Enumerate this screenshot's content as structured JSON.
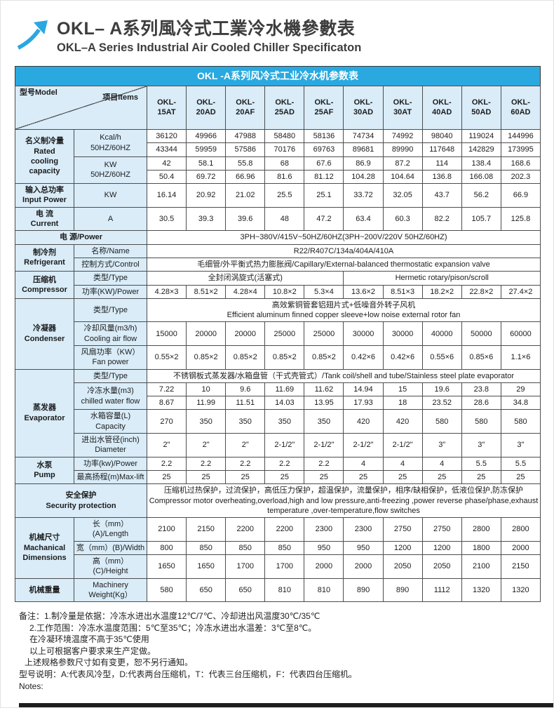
{
  "header": {
    "title_cn": "OKL– A系列風冷式工業冷水機參數表",
    "title_en": "OKL–A Series Industrial Air Cooled Chiller Specificaton",
    "logo_icon": "arrow-up-right-icon"
  },
  "colors": {
    "accent_blue": "#29a9e0",
    "cell_blue": "#d9ecf8",
    "border": "#4d4d4d"
  },
  "table": {
    "title": "OKL -A系列风冷式工业冷水机参数表",
    "header": {
      "corner_model": "型号Model",
      "corner_items": "项目Items",
      "models": [
        "OKL-\n15AT",
        "OKL-\n20AD",
        "OKL-\n20AF",
        "OKL-\n25AD",
        "OKL-\n25AF",
        "OKL-\n30AD",
        "OKL-\n30AT",
        "OKL-\n40AD",
        "OKL-\n50AD",
        "OKL-\n60AD"
      ]
    },
    "rows": [
      [
        {
          "t": "名义制冷量\nRated\ncooling\ncapacity",
          "rs": 4,
          "cls": "cat"
        },
        {
          "t": "Kcal/h\n50HZ/60HZ",
          "rs": 2,
          "cls": "sub"
        },
        "36120",
        "49966",
        "47988",
        "58480",
        "58136",
        "74734",
        "74992",
        "98040",
        "119024",
        "144996"
      ],
      [
        "43344",
        "59959",
        "57586",
        "70176",
        "69763",
        "89681",
        "89990",
        "117648",
        "142829",
        "173995"
      ],
      [
        {
          "t": "KW\n50HZ/60HZ",
          "rs": 2,
          "cls": "sub"
        },
        "42",
        "58.1",
        "55.8",
        "68",
        "67.6",
        "86.9",
        "87.2",
        "114",
        "138.4",
        "168.6"
      ],
      [
        "50.4",
        "69.72",
        "66.96",
        "81.6",
        "81.12",
        "104.28",
        "104.64",
        "136.8",
        "166.08",
        "202.3"
      ],
      [
        {
          "t": "输入总功率\nInput Power",
          "cls": "cat"
        },
        {
          "t": "KW",
          "cls": "sub"
        },
        "16.14",
        "20.92",
        "21.02",
        "25.5",
        "25.1",
        "33.72",
        "32.05",
        "43.7",
        "56.2",
        "66.9"
      ],
      [
        {
          "t": "电 流\nCurrent",
          "cls": "cat"
        },
        {
          "t": "A",
          "cls": "sub"
        },
        "30.5",
        "39.3",
        "39.6",
        "48",
        "47.2",
        "63.4",
        "60.3",
        "82.2",
        "105.7",
        "125.8"
      ],
      [
        {
          "t": "电 源/Power",
          "cs": 2,
          "cls": "cat"
        },
        {
          "t": "3PH~380V/415V~50HZ/60HZ(3PH~200V/220V 50HZ/60HZ)",
          "cs": 10,
          "cls": "wide"
        }
      ],
      [
        {
          "t": "制冷剂\nRefrigerant",
          "rs": 2,
          "cls": "cat"
        },
        {
          "t": "名称/Name",
          "cls": "sub"
        },
        {
          "t": "R22/R407C/134a/404A/410A",
          "cs": 10,
          "cls": "wide"
        }
      ],
      [
        {
          "t": "控制方式/Control",
          "cls": "sub"
        },
        {
          "t": "毛细管/外平衡式热力膨胀阀/Capillary/External-balanced thermostatic expansion valve",
          "cs": 10,
          "cls": "wide"
        }
      ],
      [
        {
          "t": "压缩机\nCompressor",
          "rs": 2,
          "cls": "cat"
        },
        {
          "t": "类型/Type",
          "cls": "sub"
        },
        {
          "t": "全封闭涡旋式(活塞式)",
          "cs": 5,
          "cls": "wide"
        },
        {
          "t": "Hermetic rotary/pison/scroll",
          "cs": 5,
          "cls": "wide"
        }
      ],
      [
        {
          "t": "功率(KW)/Power",
          "cls": "sub"
        },
        "4.28×3",
        "8.51×2",
        "4.28×4",
        "10.8×2",
        "5.3×4",
        "13.6×2",
        "8.51×3",
        "18.2×2",
        "22.8×2",
        "27.4×2"
      ],
      [
        {
          "t": "冷凝器\nCondenser",
          "rs": 3,
          "cls": "cat"
        },
        {
          "t": "类型/Type",
          "cls": "sub"
        },
        {
          "t": "高效紫铜管套铝翅片式+低噪音外转子风机\nEfficient aluminum finned copper sleeve+low noise external rotor fan",
          "cs": 10,
          "cls": "wide"
        }
      ],
      [
        {
          "t": "冷却风量(m3/h)\nCooling air flow",
          "cls": "sub"
        },
        "15000",
        "20000",
        "20000",
        "25000",
        "25000",
        "30000",
        "30000",
        "40000",
        "50000",
        "60000"
      ],
      [
        {
          "t": "风扇功率（KW）\nFan power",
          "cls": "sub"
        },
        "0.55×2",
        "0.85×2",
        "0.85×2",
        "0.85×2",
        "0.85×2",
        "0.42×6",
        "0.42×6",
        "0.55×6",
        "0.85×6",
        "1.1×6"
      ],
      [
        {
          "t": "蒸发器\nEvaporator",
          "rs": 5,
          "cls": "cat"
        },
        {
          "t": "类型/Type",
          "cls": "sub"
        },
        {
          "t": "不锈钢板式蒸发器/水箱盘管（干式壳管式）/Tank coil/shell and tube/Stainless steel plate evaporator",
          "cs": 10,
          "cls": "wide"
        }
      ],
      [
        {
          "t": "冷冻水量(m3)\nchilled water flow",
          "rs": 2,
          "cls": "sub"
        },
        "7.22",
        "10",
        "9.6",
        "11.69",
        "11.62",
        "14.94",
        "15",
        "19.6",
        "23.8",
        "29"
      ],
      [
        "8.67",
        "11.99",
        "11.51",
        "14.03",
        "13.95",
        "17.93",
        "18",
        "23.52",
        "28.6",
        "34.8"
      ],
      [
        {
          "t": "水箱容量(L)\nCapacity",
          "cls": "sub"
        },
        "270",
        "350",
        "350",
        "350",
        "350",
        "420",
        "420",
        "580",
        "580",
        "580"
      ],
      [
        {
          "t": "进出水管径(inch)\nDiameter",
          "cls": "sub"
        },
        "2\"",
        "2\"",
        "2\"",
        "2-1/2\"",
        "2-1/2\"",
        "2-1/2\"",
        "2-1/2\"",
        "3\"",
        "3\"",
        "3\""
      ],
      [
        {
          "t": "水泵\nPump",
          "rs": 2,
          "cls": "cat"
        },
        {
          "t": "功率(kw)/Power",
          "cls": "sub"
        },
        "2.2",
        "2.2",
        "2.2",
        "2.2",
        "2.2",
        "4",
        "4",
        "4",
        "5.5",
        "5.5"
      ],
      [
        {
          "t": "最高扬程(m)Max-lift",
          "cls": "sub"
        },
        "25",
        "25",
        "25",
        "25",
        "25",
        "25",
        "25",
        "25",
        "25",
        "25"
      ],
      [
        {
          "t": "安全保护\nSecurity protection",
          "cs": 2,
          "cls": "cat"
        },
        {
          "t": "压缩机过热保护，过流保护，高低压力保护，超温保护，流量保护，相序/缺相保护，低液位保护,防冻保护\nCompressor motor overheating,overload,high and low pressure,anti-freezing ,power reverse phase/phase,exhaust temperature ,over-temperature,flow switches",
          "cs": 10,
          "cls": "wide"
        }
      ],
      [
        {
          "t": "机械尺寸\nMachanical\nDimensions",
          "rs": 3,
          "cls": "cat"
        },
        {
          "t": "长（mm）(A)/Length",
          "cls": "sub"
        },
        "2100",
        "2150",
        "2200",
        "2200",
        "2300",
        "2300",
        "2750",
        "2750",
        "2800",
        "2800"
      ],
      [
        {
          "t": "宽（mm）(B)/Width",
          "cls": "sub"
        },
        "800",
        "850",
        "850",
        "850",
        "950",
        "950",
        "1200",
        "1200",
        "1800",
        "2000"
      ],
      [
        {
          "t": "高（mm）(C)/Height",
          "cls": "sub"
        },
        "1650",
        "1650",
        "1700",
        "1700",
        "2000",
        "2000",
        "2050",
        "2050",
        "2100",
        "2150"
      ],
      [
        {
          "t": "机械重量",
          "cls": "cat"
        },
        {
          "t": "Machinery\nWeight(Kg）",
          "cls": "sub"
        },
        "580",
        "650",
        "650",
        "810",
        "810",
        "890",
        "890",
        "1112",
        "1320",
        "1320"
      ]
    ]
  },
  "notes": {
    "lines": [
      {
        "text": "备注：1.制冷量是依据：冷冻水进出水温度12℃/7℃、冷却进出风温度30℃/35℃",
        "ind": 0
      },
      {
        "text": "2.工作范围：冷冻水温度范围：5℃至35℃；冷冻水进出水温差：3℃至8℃。",
        "ind": 2
      },
      {
        "text": "在冷凝环境温度不高于35℃使用",
        "ind": 2
      },
      {
        "text": "以上可根据客户要求来生产定做。",
        "ind": 2
      },
      {
        "text": "上述规格参数尺寸如有变更，恕不另行通知。",
        "ind": 1
      },
      {
        "text": "型号说明：A:代表风冷型，D:代表两台压缩机，T：代表三台压缩机，F：代表四台压缩机。",
        "ind": 0
      },
      {
        "text": "Notes:",
        "ind": 0
      }
    ]
  }
}
